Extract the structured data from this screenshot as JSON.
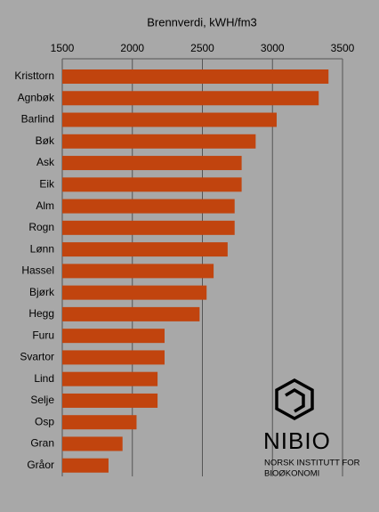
{
  "chart_data": {
    "type": "barh",
    "title": "Brennverdi, kWH/fm3",
    "categories": [
      "Kristtorn",
      "Agnbøk",
      "Barlind",
      "Bøk",
      "Ask",
      "Eik",
      "Alm",
      "Rogn",
      "Lønn",
      "Hassel",
      "Bjørk",
      "Hegg",
      "Furu",
      "Svartor",
      "Lind",
      "Selje",
      "Osp",
      "Gran",
      "Gråor"
    ],
    "values": [
      3400,
      3330,
      3030,
      2880,
      2780,
      2780,
      2730,
      2730,
      2680,
      2580,
      2530,
      2480,
      2230,
      2230,
      2180,
      2180,
      2030,
      1930,
      1830
    ],
    "color": "#c1440e",
    "xlim": [
      1500,
      3500
    ],
    "xticks": [
      1500,
      2000,
      2500,
      3000,
      3500
    ],
    "grid": true
  },
  "logo": {
    "name": "NIBIO",
    "subtitle_lines": [
      "NORSK INSTITUTT FOR",
      "BIOØKONOMI"
    ]
  }
}
